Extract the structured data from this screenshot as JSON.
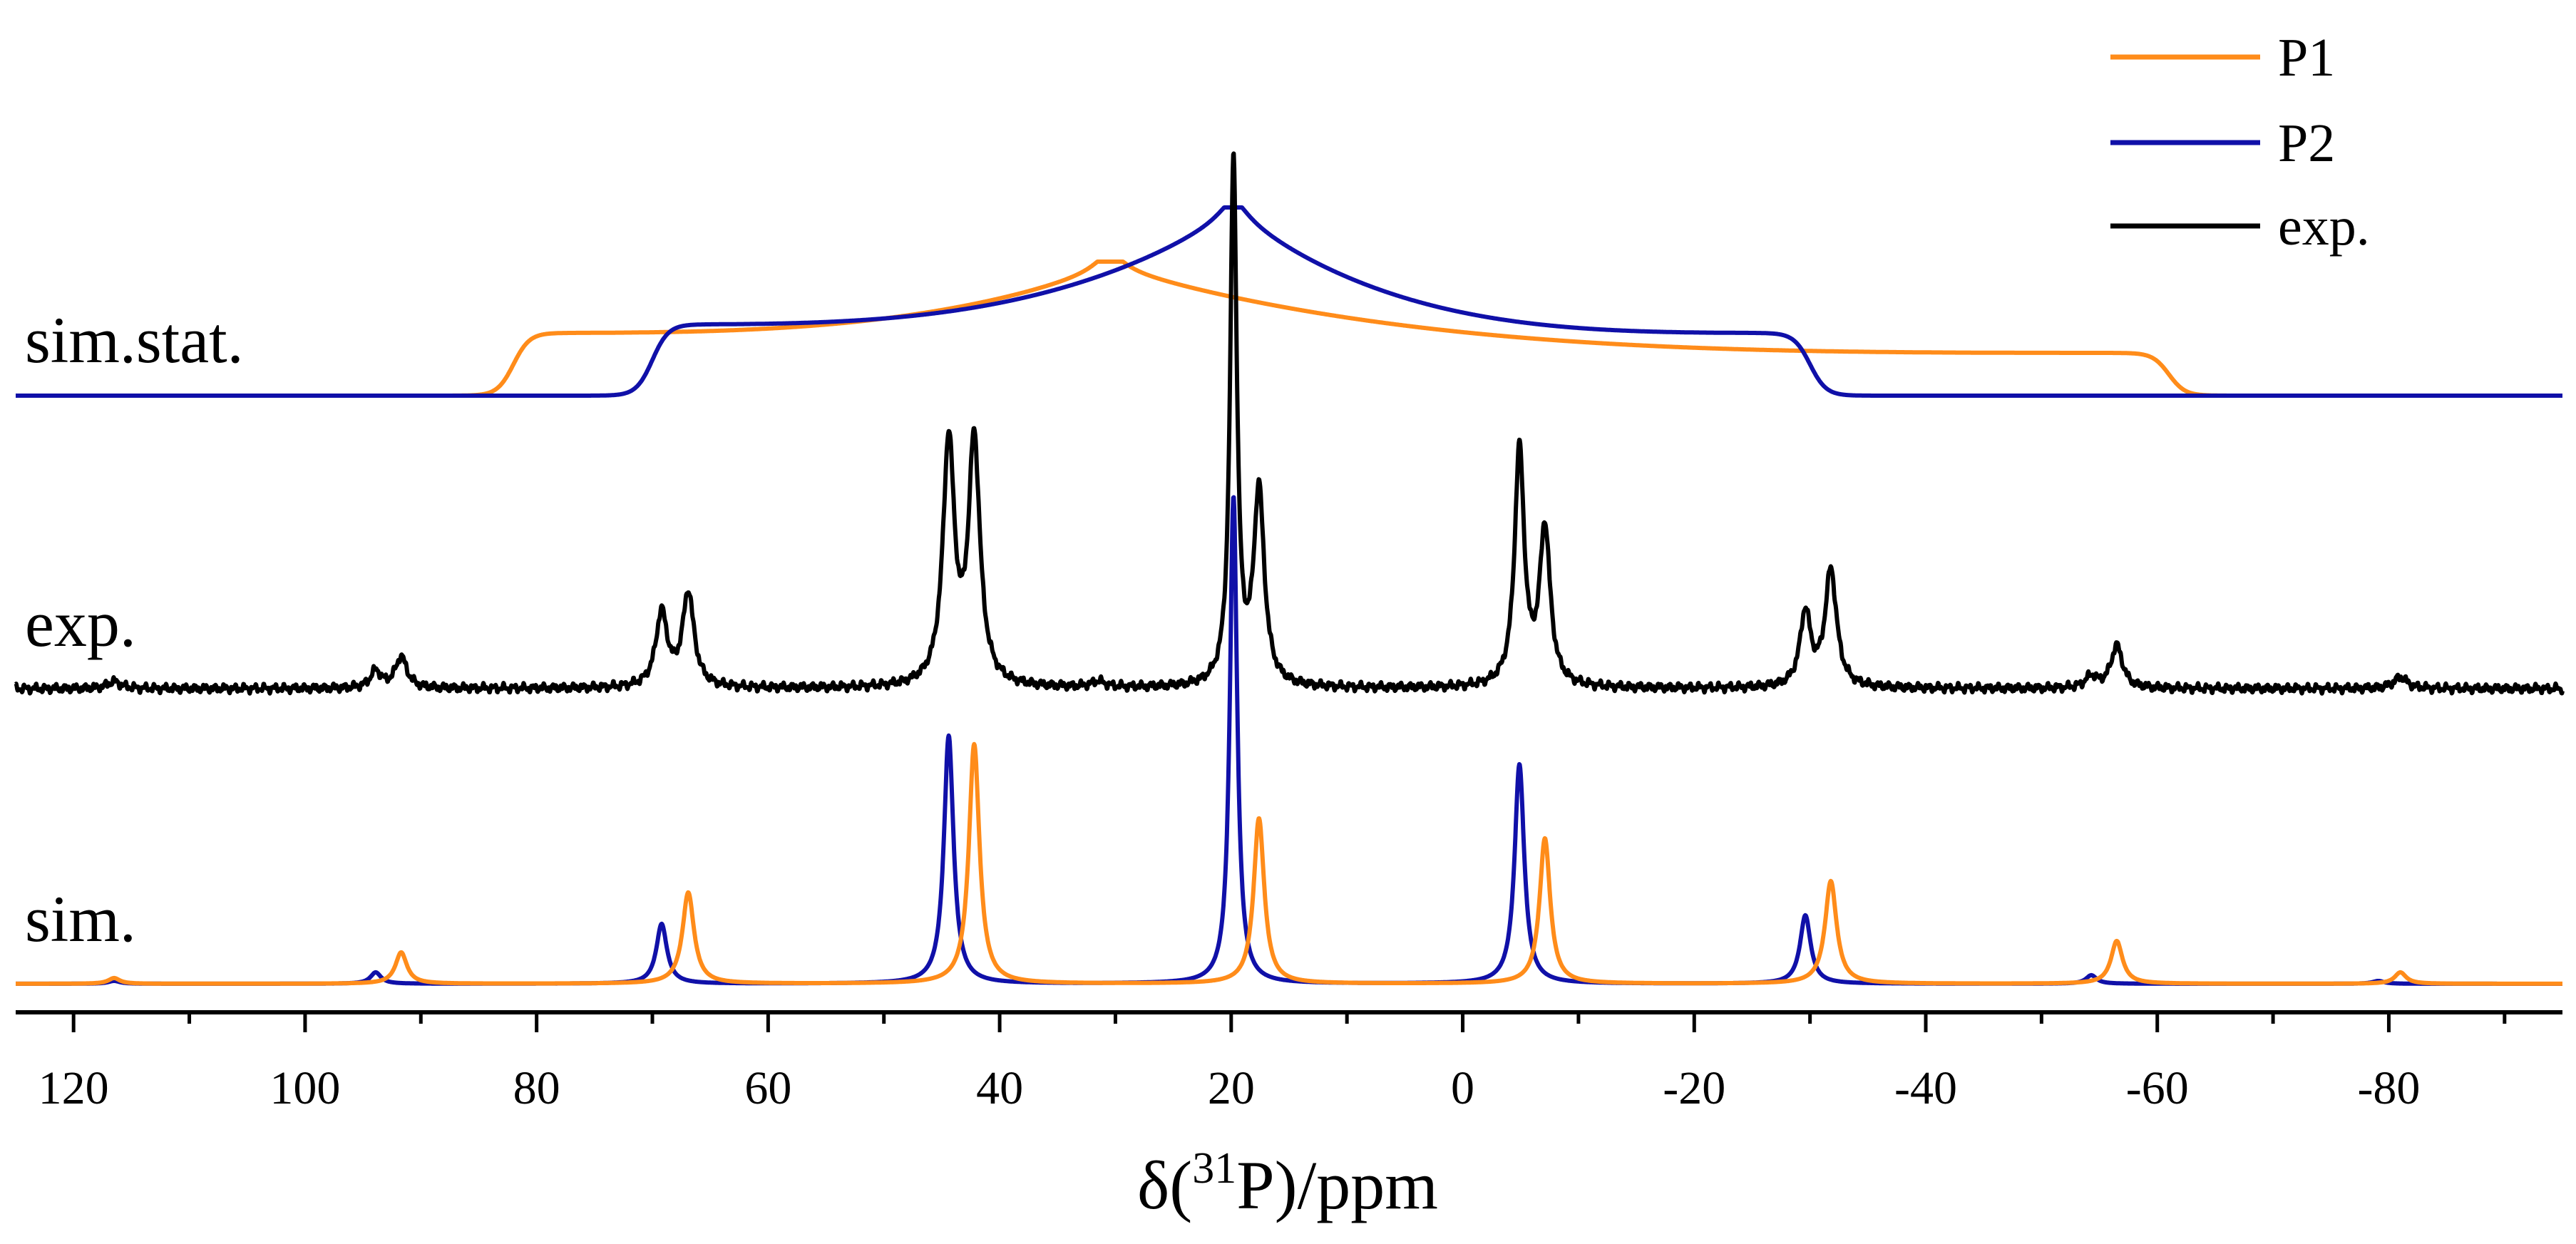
{
  "chart_data": {
    "type": "line",
    "title": "",
    "xlabel": {
      "prefix": "δ(",
      "superscript": "31",
      "suffix": "P)/ppm"
    },
    "ylabel": "",
    "xlim": [
      125,
      -95
    ],
    "x_reversed": true,
    "xticks": [
      120,
      100,
      80,
      60,
      40,
      20,
      0,
      -20,
      -40,
      -60,
      -80
    ],
    "xtick_labels": [
      "120",
      "100",
      "80",
      "60",
      "40",
      "20",
      "0",
      "-20",
      "-40",
      "-60",
      "-80"
    ],
    "minor_tick_step": 10,
    "grid": false,
    "legend": {
      "position": "top-right",
      "entries": [
        {
          "name": "P1",
          "color": "#ff8c1a"
        },
        {
          "name": "P2",
          "color": "#1010a8"
        },
        {
          "name": "exp.",
          "color": "#000000"
        }
      ]
    },
    "traces": [
      {
        "label": "sim.stat.",
        "baseline": 0
      },
      {
        "label": "exp.",
        "baseline": 0
      },
      {
        "label": "sim.",
        "baseline": 0
      }
    ],
    "series": [
      {
        "name": "P1 sim.stat.",
        "group": "sim.stat.",
        "color": "#ff8c1a",
        "kind": "static",
        "edges_ppm": [
          82,
          -61
        ],
        "peak_ppm": 30.5,
        "peak_height": 0.45,
        "shoulder_left": 0.22,
        "shoulder_right": 0.15
      },
      {
        "name": "P2 sim.stat.",
        "group": "sim.stat.",
        "color": "#1010a8",
        "kind": "static",
        "edges_ppm": [
          70,
          -30
        ],
        "peak_ppm": 19.8,
        "peak_height": 0.64,
        "shoulder_left": 0.25,
        "shoulder_right": 0.22
      },
      {
        "name": "exp.",
        "group": "exp.",
        "color": "#000000",
        "kind": "peaks",
        "peaks": [
          {
            "ppm": 116.5,
            "height": 0.025,
            "width": 0.7
          },
          {
            "ppm": 93.9,
            "height": 0.06,
            "width": 0.55
          },
          {
            "ppm": 91.7,
            "height": 0.11,
            "width": 0.6
          },
          {
            "ppm": 69.2,
            "height": 0.26,
            "width": 0.6
          },
          {
            "ppm": 66.9,
            "height": 0.33,
            "width": 0.6
          },
          {
            "ppm": 44.4,
            "height": 0.85,
            "width": 0.6
          },
          {
            "ppm": 42.2,
            "height": 0.85,
            "width": 0.6
          },
          {
            "ppm": 31.5,
            "height": 0.02,
            "width": 0.7
          },
          {
            "ppm": 19.8,
            "height": 1.84,
            "width": 0.35
          },
          {
            "ppm": 17.6,
            "height": 0.68,
            "width": 0.55
          },
          {
            "ppm": -4.9,
            "height": 0.83,
            "width": 0.5
          },
          {
            "ppm": -7.1,
            "height": 0.55,
            "width": 0.55
          },
          {
            "ppm": -29.6,
            "height": 0.26,
            "width": 0.55
          },
          {
            "ppm": -31.8,
            "height": 0.41,
            "width": 0.6
          },
          {
            "ppm": -54.3,
            "height": 0.04,
            "width": 0.6
          },
          {
            "ppm": -56.5,
            "height": 0.15,
            "width": 0.6
          },
          {
            "ppm": -81.0,
            "height": 0.04,
            "width": 0.7
          }
        ]
      },
      {
        "name": "P2 sim.",
        "group": "sim.",
        "color": "#1010a8",
        "kind": "peaks",
        "peaks": [
          {
            "ppm": 116.5,
            "height": 0.01,
            "width": 0.6
          },
          {
            "ppm": 93.9,
            "height": 0.04,
            "width": 0.55
          },
          {
            "ppm": 69.2,
            "height": 0.21,
            "width": 0.55
          },
          {
            "ppm": 44.4,
            "height": 0.87,
            "width": 0.5
          },
          {
            "ppm": 19.8,
            "height": 1.71,
            "width": 0.38
          },
          {
            "ppm": -4.9,
            "height": 0.77,
            "width": 0.5
          },
          {
            "ppm": -29.6,
            "height": 0.24,
            "width": 0.55
          },
          {
            "ppm": -54.3,
            "height": 0.03,
            "width": 0.55
          },
          {
            "ppm": -79.1,
            "height": 0.01,
            "width": 0.6
          }
        ]
      },
      {
        "name": "P1 sim.",
        "group": "sim.",
        "color": "#ff8c1a",
        "kind": "peaks",
        "peaks": [
          {
            "ppm": 116.5,
            "height": 0.02,
            "width": 0.6
          },
          {
            "ppm": 91.7,
            "height": 0.11,
            "width": 0.6
          },
          {
            "ppm": 66.9,
            "height": 0.32,
            "width": 0.6
          },
          {
            "ppm": 42.2,
            "height": 0.84,
            "width": 0.55
          },
          {
            "ppm": 17.6,
            "height": 0.58,
            "width": 0.55
          },
          {
            "ppm": -7.1,
            "height": 0.51,
            "width": 0.55
          },
          {
            "ppm": -31.8,
            "height": 0.36,
            "width": 0.6
          },
          {
            "ppm": -56.5,
            "height": 0.15,
            "width": 0.6
          },
          {
            "ppm": -81.0,
            "height": 0.04,
            "width": 0.6
          }
        ]
      }
    ]
  }
}
